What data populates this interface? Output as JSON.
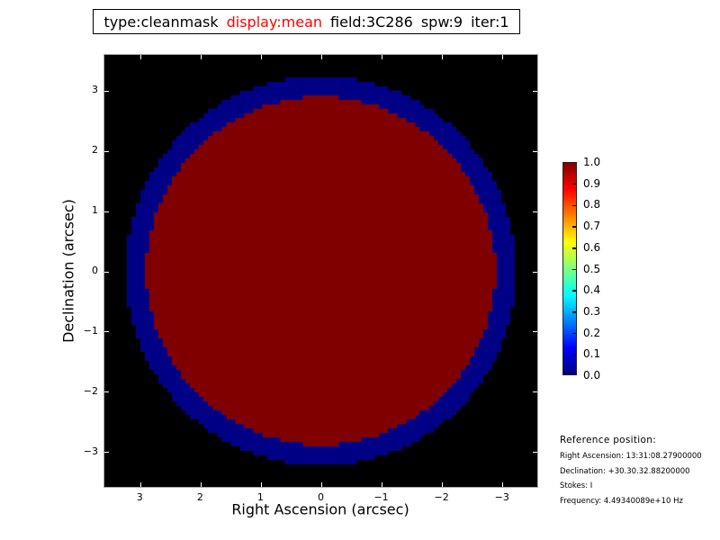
{
  "title": {
    "segments": [
      {
        "text": "type:cleanmask",
        "color": "#000000"
      },
      {
        "text": "display:mean",
        "color": "#ff0000"
      },
      {
        "text": "field:3C286",
        "color": "#000000"
      },
      {
        "text": "spw:9",
        "color": "#000000"
      },
      {
        "text": "iter:1",
        "color": "#000000"
      }
    ]
  },
  "chart_data": {
    "type": "heatmap",
    "title": "type:cleanmask display:mean field:3C286 spw:9 iter:1",
    "xlabel": "Right Ascension (arcsec)",
    "ylabel": "Declination (arcsec)",
    "xlim": [
      3.6,
      -3.6
    ],
    "ylim": [
      -3.6,
      3.6
    ],
    "xtick_values": [
      3,
      2,
      1,
      0,
      -1,
      -2,
      -3
    ],
    "xtick_labels": [
      "3",
      "2",
      "1",
      "0",
      "−1",
      "−2",
      "−3"
    ],
    "ytick_values": [
      3,
      2,
      1,
      0,
      -1,
      -2,
      -3
    ],
    "ytick_labels": [
      "3",
      "2",
      "1",
      "0",
      "−1",
      "−2",
      "−3"
    ],
    "background_value_color": "#000000",
    "mask": {
      "center": [
        0,
        0
      ],
      "outer_radius_arcsec": 3.25,
      "outer_color": "#000087",
      "inner_radius_arcsec": 2.9,
      "inner_color": "#800000",
      "grid_cells": 96
    },
    "colorbar": {
      "min": 0.0,
      "max": 1.0,
      "tick_labels": [
        "1.0",
        "0.9",
        "0.8",
        "0.7",
        "0.6",
        "0.5",
        "0.4",
        "0.3",
        "0.2",
        "0.1",
        "0.0"
      ],
      "colormap": "jet",
      "gradient_stops": [
        {
          "pos": 0.0,
          "color": "#000080"
        },
        {
          "pos": 0.125,
          "color": "#0000ff"
        },
        {
          "pos": 0.375,
          "color": "#00ffff"
        },
        {
          "pos": 0.625,
          "color": "#ffff00"
        },
        {
          "pos": 0.875,
          "color": "#ff0000"
        },
        {
          "pos": 1.0,
          "color": "#800000"
        }
      ]
    }
  },
  "reference": {
    "heading": "Reference position:",
    "lines": [
      "Right Ascension: 13:31:08.27900000",
      "Declination: +30.30.32.88200000",
      "Stokes: I",
      "Frequency: 4.49340089e+10 Hz"
    ]
  }
}
